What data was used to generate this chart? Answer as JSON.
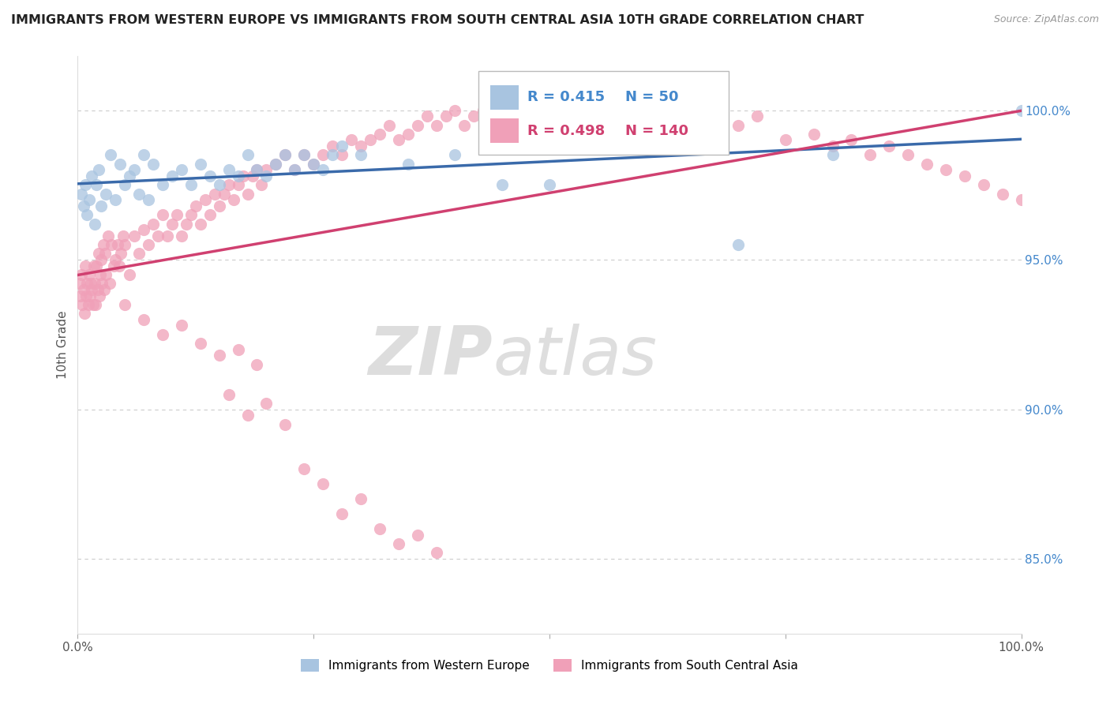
{
  "title": "IMMIGRANTS FROM WESTERN EUROPE VS IMMIGRANTS FROM SOUTH CENTRAL ASIA 10TH GRADE CORRELATION CHART",
  "source": "Source: ZipAtlas.com",
  "ylabel": "10th Grade",
  "blue_label": "Immigrants from Western Europe",
  "pink_label": "Immigrants from South Central Asia",
  "blue_R": 0.415,
  "blue_N": 50,
  "pink_R": 0.498,
  "pink_N": 140,
  "blue_color": "#a8c4e0",
  "pink_color": "#f0a0b8",
  "blue_line_color": "#3a6aaa",
  "pink_line_color": "#d04070",
  "right_yticks": [
    85.0,
    90.0,
    95.0,
    100.0
  ],
  "right_ytick_labels": [
    "85.0%",
    "90.0%",
    "95.0%",
    "100.0%"
  ],
  "ymin": 82.5,
  "ymax": 101.8,
  "xmin": 0,
  "xmax": 100,
  "watermark_zip": "ZIP",
  "watermark_atlas": "atlas",
  "legend_R_blue": "R = 0.415",
  "legend_N_blue": "N = 50",
  "legend_R_pink": "R = 0.498",
  "legend_N_pink": "N = 140",
  "blue_x": [
    0.4,
    0.6,
    0.8,
    1.0,
    1.2,
    1.5,
    1.8,
    2.0,
    2.2,
    2.5,
    3.0,
    3.5,
    4.0,
    4.5,
    5.0,
    5.5,
    6.0,
    6.5,
    7.0,
    7.5,
    8.0,
    9.0,
    10.0,
    11.0,
    12.0,
    13.0,
    14.0,
    15.0,
    16.0,
    17.0,
    18.0,
    19.0,
    20.0,
    21.0,
    22.0,
    23.0,
    24.0,
    25.0,
    26.0,
    27.0,
    28.0,
    30.0,
    35.0,
    40.0,
    45.0,
    50.0,
    60.0,
    70.0,
    80.0,
    100.0
  ],
  "blue_y": [
    97.2,
    96.8,
    97.5,
    96.5,
    97.0,
    97.8,
    96.2,
    97.5,
    98.0,
    96.8,
    97.2,
    98.5,
    97.0,
    98.2,
    97.5,
    97.8,
    98.0,
    97.2,
    98.5,
    97.0,
    98.2,
    97.5,
    97.8,
    98.0,
    97.5,
    98.2,
    97.8,
    97.5,
    98.0,
    97.8,
    98.5,
    98.0,
    97.8,
    98.2,
    98.5,
    98.0,
    98.5,
    98.2,
    98.0,
    98.5,
    98.8,
    98.5,
    98.2,
    98.5,
    97.5,
    97.5,
    99.5,
    95.5,
    98.5,
    100.0
  ],
  "pink_x": [
    0.2,
    0.3,
    0.4,
    0.5,
    0.6,
    0.7,
    0.8,
    0.9,
    1.0,
    1.1,
    1.2,
    1.3,
    1.4,
    1.5,
    1.6,
    1.7,
    1.8,
    1.9,
    2.0,
    2.1,
    2.2,
    2.3,
    2.4,
    2.5,
    2.6,
    2.7,
    2.8,
    2.9,
    3.0,
    3.2,
    3.4,
    3.6,
    3.8,
    4.0,
    4.2,
    4.4,
    4.6,
    4.8,
    5.0,
    5.5,
    6.0,
    6.5,
    7.0,
    7.5,
    8.0,
    8.5,
    9.0,
    9.5,
    10.0,
    10.5,
    11.0,
    11.5,
    12.0,
    12.5,
    13.0,
    13.5,
    14.0,
    14.5,
    15.0,
    15.5,
    16.0,
    16.5,
    17.0,
    17.5,
    18.0,
    18.5,
    19.0,
    19.5,
    20.0,
    21.0,
    22.0,
    23.0,
    24.0,
    25.0,
    26.0,
    27.0,
    28.0,
    29.0,
    30.0,
    31.0,
    32.0,
    33.0,
    34.0,
    35.0,
    36.0,
    37.0,
    38.0,
    39.0,
    40.0,
    41.0,
    42.0,
    43.0,
    44.0,
    45.0,
    46.0,
    47.0,
    48.0,
    50.0,
    52.0,
    55.0,
    58.0,
    60.0,
    62.0,
    65.0,
    68.0,
    70.0,
    72.0,
    75.0,
    78.0,
    80.0,
    82.0,
    84.0,
    86.0,
    88.0,
    90.0,
    92.0,
    94.0,
    96.0,
    98.0,
    100.0,
    24.0,
    26.0,
    28.0,
    30.0,
    32.0,
    34.0,
    36.0,
    38.0,
    16.0,
    18.0,
    20.0,
    22.0,
    5.0,
    7.0,
    9.0,
    11.0,
    13.0,
    15.0,
    17.0,
    19.0
  ],
  "pink_y": [
    94.2,
    93.8,
    94.5,
    93.5,
    94.0,
    93.2,
    94.8,
    93.8,
    94.2,
    93.5,
    94.5,
    93.8,
    94.2,
    94.0,
    93.5,
    94.8,
    94.2,
    93.5,
    94.8,
    94.0,
    95.2,
    93.8,
    94.5,
    95.0,
    94.2,
    95.5,
    94.0,
    95.2,
    94.5,
    95.8,
    94.2,
    95.5,
    94.8,
    95.0,
    95.5,
    94.8,
    95.2,
    95.8,
    95.5,
    94.5,
    95.8,
    95.2,
    96.0,
    95.5,
    96.2,
    95.8,
    96.5,
    95.8,
    96.2,
    96.5,
    95.8,
    96.2,
    96.5,
    96.8,
    96.2,
    97.0,
    96.5,
    97.2,
    96.8,
    97.2,
    97.5,
    97.0,
    97.5,
    97.8,
    97.2,
    97.8,
    98.0,
    97.5,
    98.0,
    98.2,
    98.5,
    98.0,
    98.5,
    98.2,
    98.5,
    98.8,
    98.5,
    99.0,
    98.8,
    99.0,
    99.2,
    99.5,
    99.0,
    99.2,
    99.5,
    99.8,
    99.5,
    99.8,
    100.0,
    99.5,
    99.8,
    100.0,
    100.0,
    99.8,
    100.0,
    100.0,
    100.0,
    100.0,
    100.0,
    100.0,
    99.5,
    99.2,
    99.5,
    99.8,
    99.2,
    99.5,
    99.8,
    99.0,
    99.2,
    98.8,
    99.0,
    98.5,
    98.8,
    98.5,
    98.2,
    98.0,
    97.8,
    97.5,
    97.2,
    97.0,
    88.0,
    87.5,
    86.5,
    87.0,
    86.0,
    85.5,
    85.8,
    85.2,
    90.5,
    89.8,
    90.2,
    89.5,
    93.5,
    93.0,
    92.5,
    92.8,
    92.2,
    91.8,
    92.0,
    91.5
  ]
}
